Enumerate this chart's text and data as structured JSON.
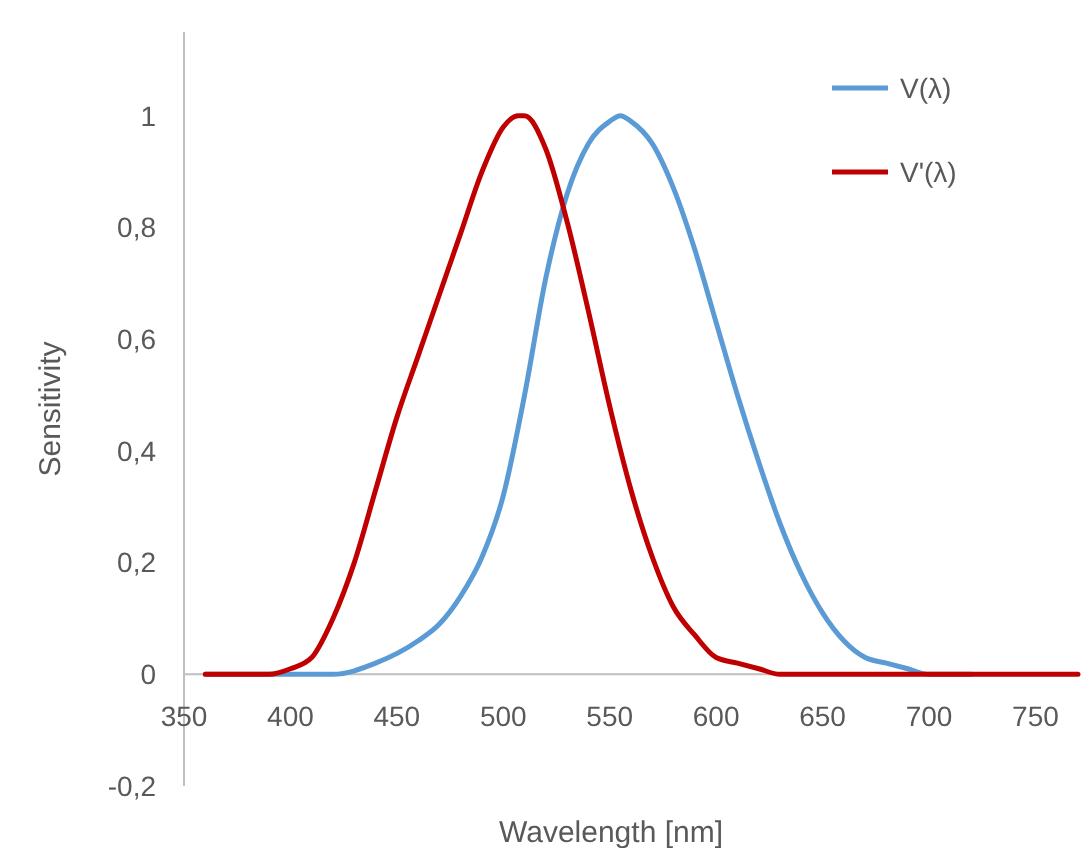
{
  "chart_data": {
    "type": "line",
    "xlabel": "Wavelength [nm]",
    "ylabel": "Sensitivity",
    "xlim": [
      350,
      770
    ],
    "ylim": [
      -0.2,
      1.15
    ],
    "xticks": [
      350,
      400,
      450,
      500,
      550,
      600,
      650,
      700,
      750
    ],
    "yticks": [
      {
        "value": -0.2,
        "label": "-0,2"
      },
      {
        "value": 0,
        "label": "0"
      },
      {
        "value": 0.2,
        "label": "0,2"
      },
      {
        "value": 0.4,
        "label": "0,4"
      },
      {
        "value": 0.6,
        "label": "0,6"
      },
      {
        "value": 0.8,
        "label": "0,8"
      },
      {
        "value": 1,
        "label": "1"
      }
    ],
    "grid": false,
    "legend": "top right",
    "marker": "none",
    "line_style": "solid",
    "series": [
      {
        "name": "V(λ)",
        "color": "#5b9bd5",
        "x": [
          360,
          380,
          400,
          420,
          440,
          460,
          470,
          480,
          490,
          500,
          510,
          520,
          530,
          540,
          550,
          555,
          560,
          570,
          580,
          590,
          600,
          610,
          620,
          630,
          640,
          650,
          660,
          670,
          680,
          690,
          700,
          720
        ],
        "values": [
          0,
          0,
          0,
          0,
          0.02,
          0.06,
          0.09,
          0.14,
          0.21,
          0.32,
          0.5,
          0.71,
          0.86,
          0.95,
          0.99,
          1,
          0.99,
          0.95,
          0.87,
          0.76,
          0.63,
          0.5,
          0.38,
          0.27,
          0.18,
          0.11,
          0.06,
          0.03,
          0.02,
          0.01,
          0,
          0
        ]
      },
      {
        "name": "V'(λ)",
        "color": "#c00000",
        "x": [
          360,
          380,
          390,
          400,
          410,
          420,
          430,
          440,
          450,
          460,
          470,
          480,
          490,
          500,
          507,
          510,
          520,
          530,
          540,
          550,
          560,
          570,
          580,
          590,
          600,
          610,
          620,
          630,
          640,
          650,
          670,
          700,
          770
        ],
        "values": [
          0,
          0,
          0,
          0.01,
          0.03,
          0.1,
          0.2,
          0.33,
          0.46,
          0.57,
          0.68,
          0.79,
          0.9,
          0.98,
          1,
          1,
          0.94,
          0.81,
          0.65,
          0.48,
          0.33,
          0.21,
          0.12,
          0.07,
          0.03,
          0.02,
          0.01,
          0,
          0,
          0,
          0,
          0,
          0
        ]
      }
    ]
  }
}
